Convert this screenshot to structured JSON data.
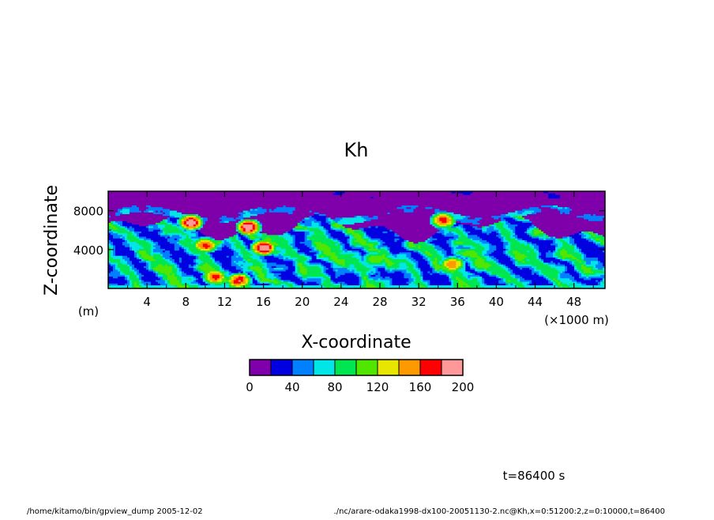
{
  "chart_data": {
    "type": "heatmap",
    "title": "Kh",
    "xlabel": "X-coordinate",
    "ylabel": "Z-coordinate",
    "x_unit": "(×1000 m)",
    "y_unit": "(m)",
    "xlim": [
      0,
      51.2
    ],
    "ylim": [
      0,
      10000
    ],
    "x_ticks": [
      "4",
      "8",
      "12",
      "16",
      "20",
      "24",
      "28",
      "32",
      "36",
      "40",
      "44",
      "48"
    ],
    "x_tick_values": [
      4,
      8,
      12,
      16,
      20,
      24,
      28,
      32,
      36,
      40,
      44,
      48
    ],
    "y_ticks": [
      "4000",
      "8000"
    ],
    "y_tick_values": [
      4000,
      8000
    ],
    "colorbar": {
      "levels": [
        0,
        20,
        40,
        60,
        80,
        100,
        120,
        140,
        160,
        180,
        200
      ],
      "labels": [
        "0",
        "40",
        "80",
        "120",
        "160",
        "200"
      ],
      "label_values": [
        0,
        40,
        80,
        120,
        160,
        200
      ],
      "colors": [
        "#7f00aa",
        "#0000e0",
        "#0080ff",
        "#00e6e6",
        "#00e650",
        "#50e600",
        "#e6e600",
        "#ff9900",
        "#ff0000",
        "#ff9999"
      ]
    },
    "field_description": "Upper layer (~7000–10000 m) mostly in lowest class 0–20; lower layer (0–6000 m) turbulent eddies with values mostly 20–120, local maxima up to ~200 near x≈8–16 and x≈34–36."
  },
  "time_label": "t=86400 s",
  "footer": {
    "left": "/home/kitamo/bin/gpview_dump  2005-12-02",
    "right": "./nc/arare-odaka1998-dx100-20051130-2.nc@Kh,x=0:51200:2,z=0:10000,t=86400"
  }
}
